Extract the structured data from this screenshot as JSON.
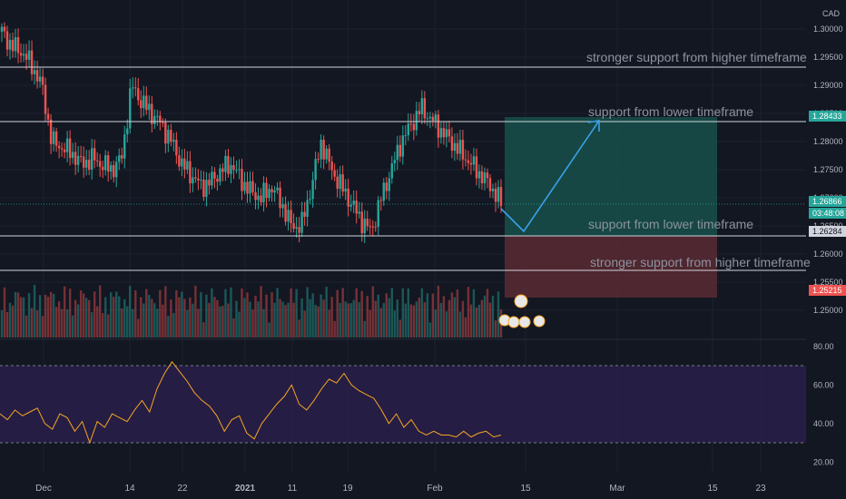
{
  "currency": "CAD",
  "price_axis_ticks": [
    "1.30000",
    "1.29500",
    "1.29000",
    "1.28500",
    "1.28000",
    "1.27500",
    "1.27000",
    "1.26500",
    "1.26000",
    "1.25500",
    "1.25000"
  ],
  "price_tags": [
    {
      "value": "1.28433",
      "kind": "target"
    },
    {
      "value": "1.26866",
      "kind": "current"
    },
    {
      "value": "03:48:08",
      "kind": "countdown"
    },
    {
      "value": "1.26284",
      "kind": "line"
    },
    {
      "value": "1.25215",
      "kind": "stop"
    }
  ],
  "rsi_ticks": [
    "80.00",
    "60.00",
    "40.00",
    "20.00"
  ],
  "time_ticks": [
    {
      "label": "Dec",
      "bold": false
    },
    {
      "label": "14",
      "bold": false
    },
    {
      "label": "22",
      "bold": false
    },
    {
      "label": "2021",
      "bold": true
    },
    {
      "label": "11",
      "bold": false
    },
    {
      "label": "19",
      "bold": false
    },
    {
      "label": "Feb",
      "bold": false
    },
    {
      "label": "15",
      "bold": false
    },
    {
      "label": "Mar",
      "bold": false
    },
    {
      "label": "15",
      "bold": false
    },
    {
      "label": "23",
      "bold": false
    }
  ],
  "annotations": [
    "stronger support from higher timeframe",
    "support from lower timeframe",
    "support from lower timeframe",
    "stronger support from higher timeframe"
  ],
  "colors": {
    "background": "#131722",
    "grid": "#1e2230",
    "up": "#26a69a",
    "down": "#ef5350",
    "hline": "#d1d4dc",
    "annotation": "#8c929e",
    "rsi_line": "#f5a623",
    "rsi_band": "#2a1f4a",
    "profit_zone": "#18504a",
    "loss_zone": "#5a2a32",
    "projection": "#3aa0e8",
    "axis_text": "#b2b5be"
  },
  "chart_data": {
    "type": "candlestick",
    "symbol_currency": "CAD",
    "date_range": [
      "2020-11-25",
      "2021-02-11"
    ],
    "price_axis": {
      "ticks": [
        1.3,
        1.295,
        1.29,
        1.285,
        1.28,
        1.275,
        1.27,
        1.265,
        1.26,
        1.255,
        1.25
      ]
    },
    "close_series": [
      1.2995,
      1.297,
      1.296,
      1.2935,
      1.29,
      1.28,
      1.279,
      1.278,
      1.276,
      1.277,
      1.276,
      1.275,
      1.277,
      1.29,
      1.287,
      1.285,
      1.283,
      1.28,
      1.276,
      1.274,
      1.272,
      1.273,
      1.275,
      1.276,
      1.273,
      1.271,
      1.27,
      1.272,
      1.269,
      1.265,
      1.265,
      1.272,
      1.28,
      1.275,
      1.272,
      1.269,
      1.266,
      1.264,
      1.27,
      1.275,
      1.28,
      1.283,
      1.286,
      1.284,
      1.282,
      1.28,
      1.278,
      1.276,
      1.274,
      1.272,
      1.269
    ],
    "horizontal_levels": [
      1.295,
      1.2843,
      1.2628,
      1.2585
    ],
    "position": {
      "entry": 1.2628,
      "target": 1.28433,
      "stop": 1.25215
    },
    "rsi": {
      "upper": 70,
      "lower": 30,
      "axis_ticks": [
        80,
        60,
        40,
        20
      ],
      "values": [
        45,
        42,
        47,
        44,
        46,
        48,
        40,
        37,
        45,
        43,
        36,
        41,
        30,
        41,
        38,
        45,
        43,
        41,
        47,
        52,
        46,
        58,
        66,
        72,
        67,
        62,
        56,
        52,
        49,
        44,
        36,
        42,
        44,
        35,
        32,
        40,
        45,
        50,
        54,
        60,
        50,
        47,
        52,
        58,
        63,
        61,
        66,
        60,
        57,
        55,
        53,
        47,
        40,
        45,
        38,
        42,
        36,
        34,
        36,
        34,
        34,
        33,
        36,
        33,
        35,
        36,
        33,
        34
      ]
    },
    "time_axis": [
      "Dec",
      "14",
      "22",
      "2021",
      "11",
      "19",
      "Feb",
      "15",
      "Mar",
      "15",
      "23"
    ]
  }
}
